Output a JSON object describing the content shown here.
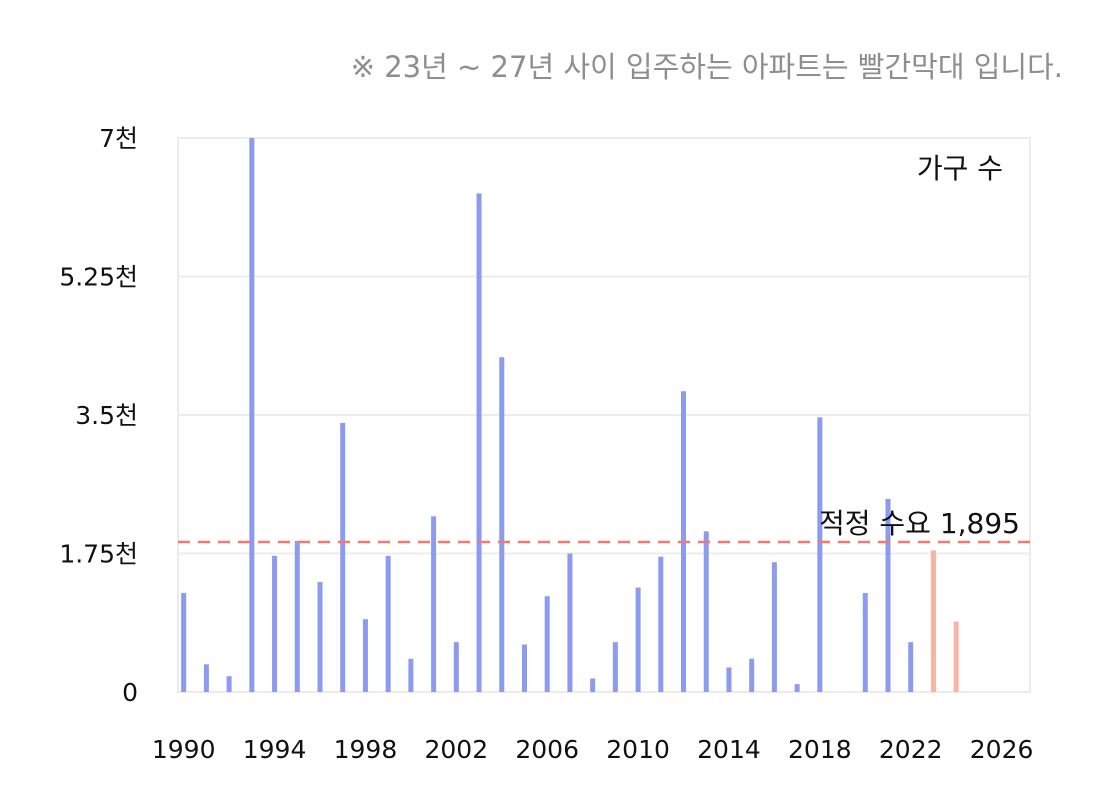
{
  "note": "※ 23년 ~ 27년 사이 입주하는 아파트는 빨간막대 입니다.",
  "colors": {
    "default_bar": "#8c9af0",
    "highlight_bar": "#f7b4a2",
    "reference_line": "#f07a72",
    "grid": "#ececec"
  },
  "chart_data": {
    "type": "bar",
    "title": "",
    "xlabel": "",
    "ylabel": "",
    "legend": {
      "label": "가구 수",
      "position": "top-right"
    },
    "x_ticks": [
      "1990",
      "1994",
      "1998",
      "2002",
      "2006",
      "2010",
      "2014",
      "2018",
      "2022",
      "2026"
    ],
    "x_range": [
      1989.75,
      2027.25
    ],
    "y_ticks": [
      {
        "value": 0,
        "label": "0"
      },
      {
        "value": 1750,
        "label": "1.75천"
      },
      {
        "value": 3500,
        "label": "3.5천"
      },
      {
        "value": 5250,
        "label": "5.25천"
      },
      {
        "value": 7000,
        "label": "7천"
      }
    ],
    "ylim": [
      0,
      7000
    ],
    "grid": true,
    "reference_line": {
      "value": 1895,
      "label": "적정 수요 1,895"
    },
    "series": [
      {
        "highlight_years": [
          2023,
          2024
        ],
        "points": [
          {
            "year": 1990,
            "value": 1250
          },
          {
            "year": 1991,
            "value": 350
          },
          {
            "year": 1992,
            "value": 200
          },
          {
            "year": 1993,
            "value": 7000
          },
          {
            "year": 1994,
            "value": 1720
          },
          {
            "year": 1995,
            "value": 1910
          },
          {
            "year": 1996,
            "value": 1390
          },
          {
            "year": 1997,
            "value": 3400
          },
          {
            "year": 1998,
            "value": 920
          },
          {
            "year": 1999,
            "value": 1720
          },
          {
            "year": 2000,
            "value": 420
          },
          {
            "year": 2001,
            "value": 2220
          },
          {
            "year": 2002,
            "value": 630
          },
          {
            "year": 2003,
            "value": 6300
          },
          {
            "year": 2004,
            "value": 4230
          },
          {
            "year": 2005,
            "value": 600
          },
          {
            "year": 2006,
            "value": 1210
          },
          {
            "year": 2007,
            "value": 1750
          },
          {
            "year": 2008,
            "value": 170
          },
          {
            "year": 2009,
            "value": 630
          },
          {
            "year": 2010,
            "value": 1320
          },
          {
            "year": 2011,
            "value": 1710
          },
          {
            "year": 2012,
            "value": 3800
          },
          {
            "year": 2013,
            "value": 2030
          },
          {
            "year": 2014,
            "value": 310
          },
          {
            "year": 2015,
            "value": 420
          },
          {
            "year": 2016,
            "value": 1640
          },
          {
            "year": 2017,
            "value": 100
          },
          {
            "year": 2018,
            "value": 3470
          },
          {
            "year": 2020,
            "value": 1250
          },
          {
            "year": 2021,
            "value": 2440
          },
          {
            "year": 2022,
            "value": 630
          },
          {
            "year": 2023,
            "value": 1790
          },
          {
            "year": 2024,
            "value": 890
          }
        ]
      }
    ]
  }
}
